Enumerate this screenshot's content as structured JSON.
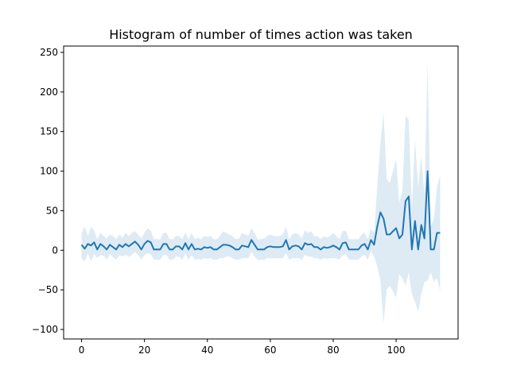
{
  "chart_data": {
    "type": "line",
    "title": "Histogram of number of times action was taken",
    "xlabel": "",
    "ylabel": "",
    "xlim": [
      -5.7,
      119.7
    ],
    "ylim": [
      -112,
      258
    ],
    "xticks": [
      0,
      20,
      40,
      60,
      80,
      100
    ],
    "yticks": [
      -100,
      -50,
      0,
      50,
      100,
      150,
      200,
      250
    ],
    "xtick_labels": [
      "0",
      "20",
      "40",
      "60",
      "80",
      "100"
    ],
    "ytick_labels": [
      "−100",
      "−50",
      "0",
      "50",
      "100",
      "150",
      "200",
      "250"
    ],
    "grid": false,
    "line_color": "#1f77b4",
    "band_color": "#1f77b4",
    "series": [
      {
        "x": [
          0,
          1,
          2,
          3,
          4,
          5,
          6,
          7,
          8,
          9,
          10,
          11,
          12,
          13,
          14,
          15,
          16,
          17,
          18,
          19,
          20,
          21,
          22,
          23,
          24,
          25,
          26,
          27,
          28,
          29,
          30,
          31,
          32,
          33,
          34,
          35,
          36,
          37,
          38,
          39,
          40,
          41,
          42,
          43,
          44,
          45,
          46,
          47,
          48,
          49,
          50,
          51,
          52,
          53,
          54,
          55,
          56,
          57,
          58,
          59,
          60,
          61,
          62,
          63,
          64,
          65,
          66,
          67,
          68,
          69,
          70,
          71,
          72,
          73,
          74,
          75,
          76,
          77,
          78,
          79,
          80,
          81,
          82,
          83,
          84,
          85,
          86,
          87,
          88,
          89,
          90,
          91,
          92,
          93,
          94,
          95,
          96,
          97,
          98,
          99,
          100,
          101,
          102,
          103,
          104,
          105,
          106,
          107,
          108,
          109,
          110,
          111,
          112,
          113,
          114
        ],
        "mean": [
          7,
          2,
          8,
          6,
          10,
          1,
          8,
          5,
          1,
          7,
          4,
          1,
          7,
          4,
          8,
          5,
          8,
          11,
          7,
          1,
          8,
          12,
          10,
          1,
          1,
          1,
          8,
          8,
          1,
          1,
          5,
          5,
          1,
          9,
          1,
          8,
          1,
          2,
          1,
          4,
          3,
          4,
          1,
          1,
          4,
          7,
          7,
          6,
          4,
          1,
          1,
          6,
          5,
          4,
          13,
          7,
          1,
          1,
          1,
          4,
          5,
          4,
          4,
          4,
          5,
          13,
          1,
          5,
          6,
          5,
          1,
          9,
          7,
          8,
          4,
          4,
          1,
          4,
          3,
          4,
          6,
          4,
          1,
          9,
          10,
          1,
          1,
          1,
          1,
          6,
          8,
          1,
          13,
          7,
          30,
          48,
          40,
          20,
          20,
          24,
          28,
          15,
          20,
          62,
          68,
          1,
          37,
          1,
          32,
          15,
          100,
          1,
          1,
          22,
          22
        ],
        "upper": [
          22,
          30,
          18,
          30,
          25,
          14,
          22,
          18,
          15,
          20,
          18,
          14,
          20,
          16,
          22,
          18,
          22,
          24,
          20,
          15,
          22,
          28,
          25,
          14,
          14,
          14,
          22,
          22,
          14,
          14,
          18,
          18,
          14,
          22,
          14,
          22,
          14,
          16,
          14,
          18,
          17,
          18,
          14,
          14,
          18,
          24,
          22,
          20,
          18,
          14,
          15,
          22,
          20,
          18,
          28,
          22,
          14,
          14,
          15,
          18,
          20,
          18,
          18,
          18,
          20,
          30,
          14,
          20,
          22,
          20,
          15,
          25,
          22,
          24,
          18,
          18,
          14,
          18,
          16,
          18,
          22,
          18,
          14,
          24,
          25,
          14,
          14,
          14,
          14,
          20,
          22,
          14,
          27,
          22,
          80,
          135,
          175,
          90,
          85,
          100,
          115,
          60,
          75,
          170,
          165,
          55,
          140,
          80,
          120,
          70,
          238,
          30,
          40,
          80,
          95
        ],
        "lower": [
          -10,
          -14,
          -4,
          -14,
          -5,
          -10,
          -6,
          -7,
          -12,
          -5,
          -9,
          -12,
          -6,
          -8,
          -6,
          -8,
          -6,
          -2,
          -6,
          -12,
          -6,
          -4,
          -5,
          -12,
          -12,
          -12,
          -6,
          -6,
          -12,
          -12,
          -8,
          -8,
          -12,
          -4,
          -12,
          -6,
          -12,
          -11,
          -12,
          -10,
          -11,
          -10,
          -12,
          -12,
          -10,
          -10,
          -8,
          -8,
          -10,
          -12,
          -12,
          -10,
          -10,
          -10,
          -2,
          -8,
          -12,
          -12,
          -12,
          -10,
          -10,
          -10,
          -10,
          -10,
          -10,
          -4,
          -12,
          -10,
          -10,
          -10,
          -12,
          -6,
          -8,
          -8,
          -10,
          -10,
          -12,
          -10,
          -11,
          -10,
          -10,
          -10,
          -12,
          -6,
          -5,
          -12,
          -12,
          -12,
          -12,
          -8,
          -6,
          -12,
          -1,
          -8,
          -20,
          -38,
          -93,
          -50,
          -45,
          -52,
          -60,
          -30,
          -35,
          -45,
          -28,
          -55,
          -65,
          -78,
          -55,
          -40,
          -38,
          -28,
          -40,
          -35,
          -52
        ]
      }
    ]
  }
}
